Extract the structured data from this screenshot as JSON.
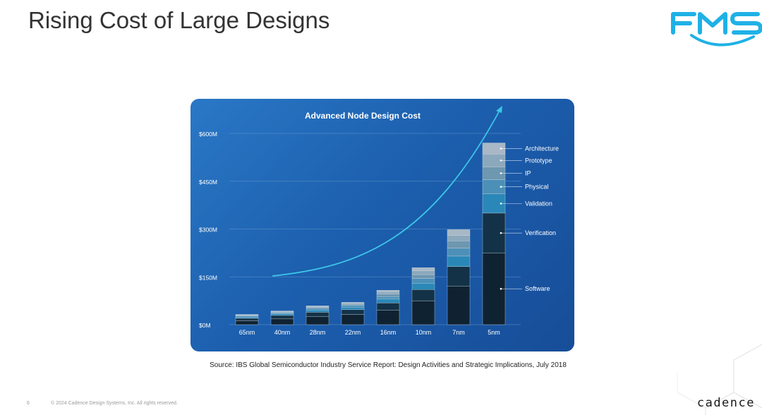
{
  "slide": {
    "title": "Rising Cost of Large Designs",
    "source": "Source: IBS Global Semiconductor Industry Service Report: Design Activities and Strategic Implications, July 2018",
    "page_number": "6",
    "copyright": "© 2024 Cadence Design Systems, Inc. All rights reserved.",
    "logo_top": "FMS",
    "logo_bottom": "cadence"
  },
  "colors": {
    "card_bg": "#1c5fae",
    "trend_line": "#3cc6e6",
    "segments": [
      "#0f2232",
      "#133247",
      "#2a88b8",
      "#4c90b8",
      "#6e97b0",
      "#8ca8bc",
      "#a8b8c6"
    ]
  },
  "chart_data": {
    "type": "bar",
    "stacked": true,
    "title": "Advanced Node Design Cost",
    "xlabel": "",
    "ylabel": "",
    "categories": [
      "65nm",
      "40nm",
      "28nm",
      "22nm",
      "16nm",
      "10nm",
      "7nm",
      "5nm"
    ],
    "yticks": [
      "$0M",
      "$150M",
      "$300M",
      "$450M",
      "$600M"
    ],
    "ylim": [
      0,
      600
    ],
    "grid": true,
    "legend": "right",
    "series": [
      {
        "name": "Software",
        "values": [
          12,
          18,
          25,
          32,
          45,
          75,
          120,
          225
        ]
      },
      {
        "name": "Verification",
        "values": [
          8,
          11,
          14,
          15,
          23,
          35,
          62,
          125
        ]
      },
      {
        "name": "Validation",
        "values": [
          4,
          5,
          7,
          8,
          12,
          20,
          33,
          60
        ]
      },
      {
        "name": "Physical",
        "values": [
          3,
          3,
          5,
          5,
          8,
          15,
          25,
          45
        ]
      },
      {
        "name": "IP",
        "values": [
          2,
          2,
          3,
          4,
          8,
          12,
          23,
          40
        ]
      },
      {
        "name": "Prototype",
        "values": [
          2,
          2,
          3,
          3,
          7,
          12,
          17,
          40
        ]
      },
      {
        "name": "Architecture",
        "values": [
          1,
          2,
          2,
          3,
          5,
          10,
          18,
          35
        ]
      }
    ]
  }
}
